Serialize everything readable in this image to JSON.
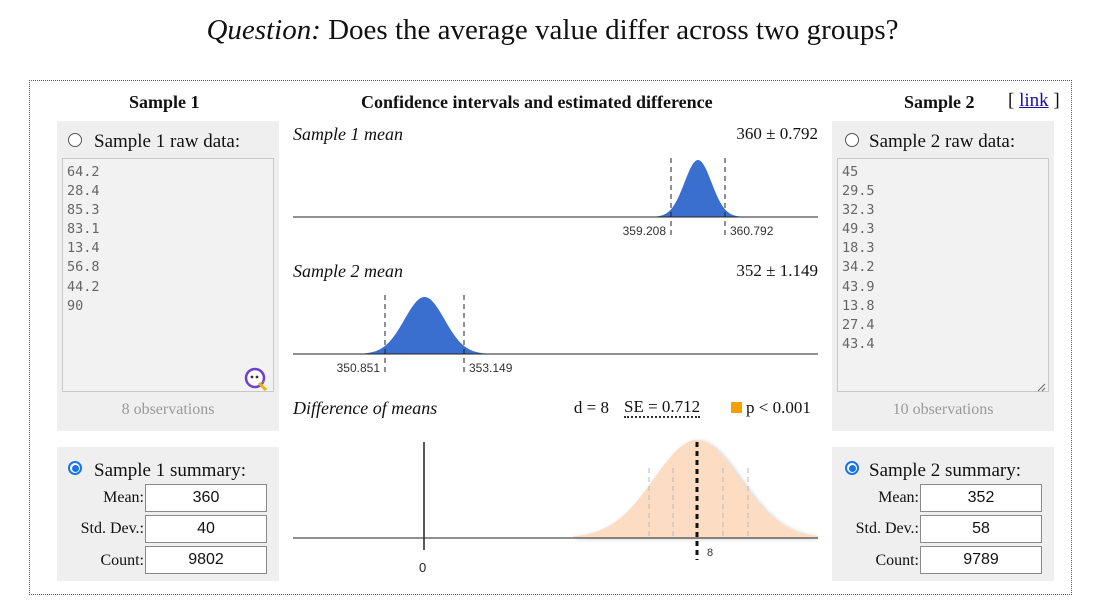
{
  "question": {
    "label": "Question:",
    "text": "Does the average value differ across two groups?"
  },
  "sample1": {
    "header": "Sample 1",
    "raw_option": "Sample 1 raw data:",
    "raw_data": "64.2\n28.4\n85.3\n83.1\n13.4\n56.8\n44.2\n90",
    "observations": "8 observations",
    "summary_option": "Sample 1 summary:",
    "mean_label": "Mean:",
    "mean": "360",
    "sd_label": "Std. Dev.:",
    "sd": "40",
    "count_label": "Count:",
    "count": "9802",
    "selected": "summary"
  },
  "sample2": {
    "header": "Sample 2",
    "link_open": "[",
    "link_text": "link",
    "link_close": "]",
    "raw_option": "Sample 2 raw data:",
    "raw_data": "45\n29.5\n32.3\n49.3\n18.3\n34.2\n43.9\n13.8\n27.4\n43.4",
    "observations": "10 observations",
    "summary_option": "Sample 2 summary:",
    "mean_label": "Mean:",
    "mean": "352",
    "sd_label": "Std. Dev.:",
    "sd": "58",
    "count_label": "Count:",
    "count": "9789",
    "selected": "summary"
  },
  "center": {
    "header": "Confidence intervals and estimated difference",
    "plot1": {
      "title": "Sample 1 mean",
      "value": "360 ± 0.792",
      "lower_label": "359.208",
      "upper_label": "360.792"
    },
    "plot2": {
      "title": "Sample 2 mean",
      "value": "352 ± 1.149",
      "lower_label": "350.851",
      "upper_label": "353.149"
    },
    "plot3": {
      "title": "Difference of means",
      "d": "d = 8",
      "se": "SE = 0.712",
      "p": "p < 0.001",
      "zero_label": "0",
      "d_label": "8"
    }
  },
  "colors": {
    "curve_blue": "#3a6fcf",
    "diff_fill": "#fddcc4",
    "p_marker": "#f5a000",
    "link": "#1a0dab",
    "radio_selected": "#1a73e8"
  },
  "icons": {
    "grammar_assistant": "grammar-assistant-icon",
    "resize_handle": "resize-handle-icon"
  }
}
